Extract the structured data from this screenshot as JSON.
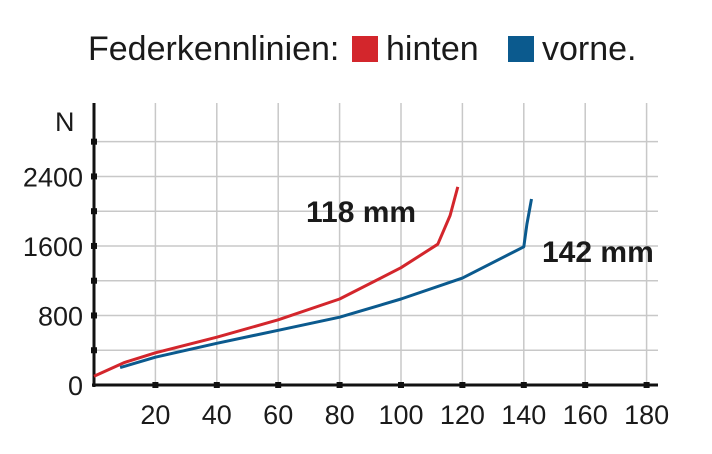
{
  "chart_data": {
    "type": "line",
    "title": "Federkennlinien:",
    "legend": [
      {
        "label": "hinten",
        "color": "#d3262c"
      },
      {
        "label": "vorne.",
        "color": "#0b5a8e"
      }
    ],
    "legend_placement": "top",
    "xlabel": "",
    "ylabel": "N",
    "xlim": [
      0,
      180
    ],
    "ylim": [
      0,
      2900
    ],
    "xticks": [
      20,
      40,
      60,
      80,
      100,
      120,
      140,
      160,
      180
    ],
    "yticks": [
      0,
      800,
      1600,
      2400
    ],
    "y_minor_gridlines": [
      400,
      1200,
      2000,
      2800
    ],
    "grid": true,
    "series": [
      {
        "name": "hinten",
        "color": "#d3262c",
        "annotation": "118 mm",
        "x": [
          0,
          10,
          20,
          40,
          60,
          80,
          100,
          112,
          116,
          118.5
        ],
        "y": [
          100,
          260,
          370,
          550,
          750,
          990,
          1350,
          1620,
          1950,
          2280
        ]
      },
      {
        "name": "vorne",
        "color": "#0b5a8e",
        "annotation": "142 mm",
        "x": [
          8.5,
          20,
          40,
          60,
          80,
          100,
          120,
          140,
          141,
          142.5
        ],
        "y": [
          200,
          320,
          480,
          630,
          780,
          990,
          1230,
          1590,
          1850,
          2140
        ]
      }
    ]
  }
}
